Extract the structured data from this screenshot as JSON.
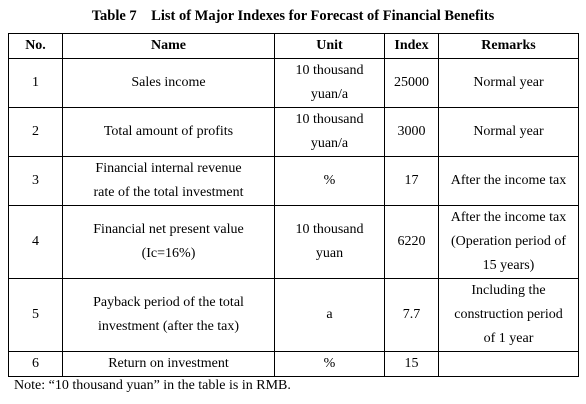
{
  "table_title": "Table 7    List of Major Indexes for Forecast of Financial Benefits",
  "headers": {
    "no": "No.",
    "name": "Name",
    "unit": "Unit",
    "index": "Index",
    "remarks": "Remarks"
  },
  "rows": [
    {
      "no": "1",
      "name": [
        "Sales income"
      ],
      "unit": [
        "10 thousand",
        "yuan/a"
      ],
      "index": "25000",
      "remarks": [
        "Normal year"
      ]
    },
    {
      "no": "2",
      "name": [
        "Total amount of profits"
      ],
      "unit": [
        "10 thousand",
        "yuan/a"
      ],
      "index": "3000",
      "remarks": [
        "Normal year"
      ]
    },
    {
      "no": "3",
      "name": [
        "Financial internal revenue",
        "rate of the total investment"
      ],
      "unit": [
        "%"
      ],
      "index": "17",
      "remarks": [
        "After the income tax"
      ]
    },
    {
      "no": "4",
      "name": [
        "Financial net present value",
        "(Ic=16%)"
      ],
      "unit": [
        "10 thousand",
        "yuan"
      ],
      "index": "6220",
      "remarks": [
        "After the income tax",
        "(Operation period of",
        "15 years)"
      ]
    },
    {
      "no": "5",
      "name": [
        "Payback period of the total",
        "investment (after the tax)"
      ],
      "unit": [
        "a"
      ],
      "index": "7.7",
      "remarks": [
        "Including the",
        "construction period",
        "of 1 year"
      ]
    },
    {
      "no": "6",
      "name": [
        "Return on investment"
      ],
      "unit": [
        "%"
      ],
      "index": "15",
      "remarks": [
        ""
      ]
    }
  ],
  "note": "Note: “10 thousand yuan” in the table is in RMB."
}
